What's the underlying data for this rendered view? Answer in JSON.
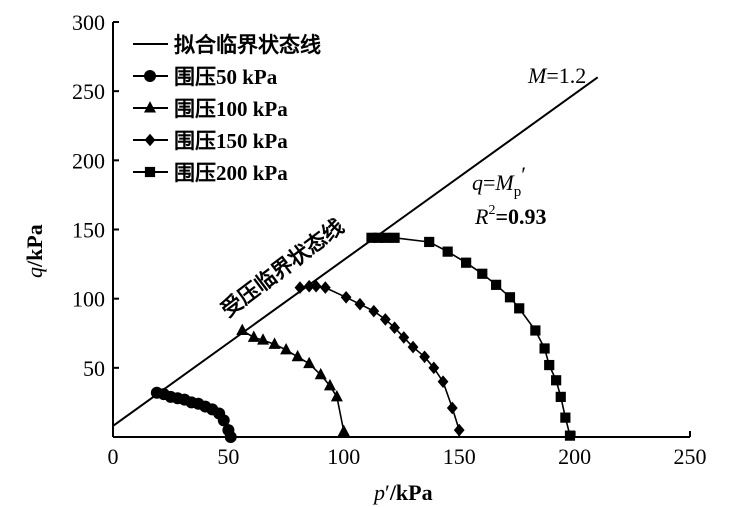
{
  "chart_data": {
    "type": "scatter",
    "xlabel_var": "p",
    "xlabel_prime": "′",
    "xlabel_unit": "/kPa",
    "ylabel_var": "q",
    "ylabel_unit": "/kPa",
    "xlim": [
      0,
      250
    ],
    "ylim": [
      0,
      300
    ],
    "x_ticks": [
      0,
      50,
      100,
      150,
      200,
      250
    ],
    "y_ticks": [
      50,
      100,
      150,
      200,
      250,
      300
    ],
    "grid": false,
    "legend_position": "top-left",
    "critical_state_line": {
      "label": "拟合临界状态线",
      "slope": 1.2,
      "intercept": 8,
      "x_range": [
        0,
        210
      ]
    },
    "annotations": {
      "m_var": "M",
      "m_value": "=1.2",
      "eq_lhs": "q",
      "eq_eq": "=",
      "eq_m": "M",
      "eq_sub": "p",
      "eq_prime": "′",
      "r2_var": "R",
      "r2_sup": "2",
      "r2_value": "=0.93",
      "line_label": "受压临界状态线"
    },
    "series": [
      {
        "name": "围压50 kPa",
        "marker": "circle",
        "x": [
          19,
          22,
          25,
          28,
          31,
          34,
          37,
          40,
          43,
          46,
          48,
          50,
          51
        ],
        "y": [
          32,
          31,
          29,
          28,
          27,
          25,
          24,
          22,
          20,
          17,
          12,
          5,
          0
        ]
      },
      {
        "name": "围压100 kPa",
        "marker": "triangle",
        "x": [
          56,
          61,
          65,
          70,
          75,
          80,
          85,
          90,
          94,
          97,
          100
        ],
        "y": [
          77,
          72,
          70,
          67,
          63,
          58,
          53,
          45,
          37,
          29,
          4
        ]
      },
      {
        "name": "围压150 kPa",
        "marker": "diamond",
        "x": [
          81,
          85,
          88,
          92,
          101,
          107,
          113,
          118,
          122,
          126,
          130,
          135,
          139,
          143,
          147,
          150
        ],
        "y": [
          108,
          109,
          109,
          108,
          101,
          96,
          91,
          85,
          79,
          72,
          65,
          58,
          50,
          40,
          21,
          5
        ]
      },
      {
        "name": "围压200 kPa",
        "marker": "square",
        "x": [
          112,
          115,
          118,
          122,
          137,
          145,
          153,
          160,
          166,
          172,
          176,
          183,
          187,
          189,
          192,
          194,
          196,
          198
        ],
        "y": [
          144,
          144,
          144,
          144,
          141,
          134,
          126,
          118,
          110,
          101,
          93,
          77,
          64,
          52,
          41,
          29,
          14,
          1
        ]
      }
    ]
  }
}
